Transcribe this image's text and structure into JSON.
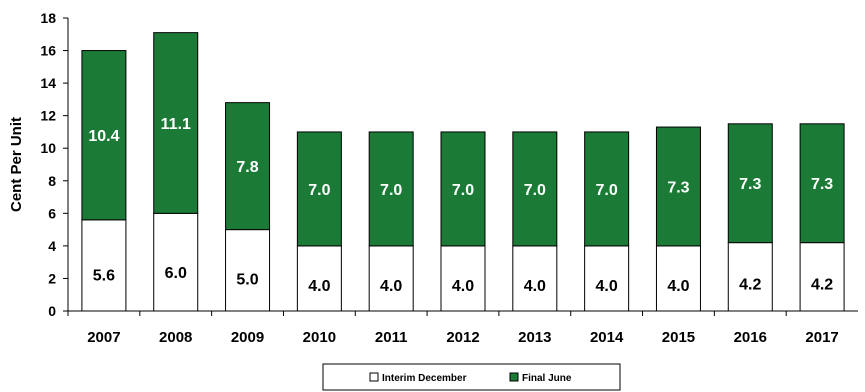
{
  "chart_data": {
    "type": "bar",
    "stacked": true,
    "title": "",
    "xlabel": "",
    "ylabel": "Cent Per Unit",
    "ylim": [
      0,
      18
    ],
    "yticks": [
      "0",
      "2",
      "4",
      "6",
      "8",
      "10",
      "12",
      "14",
      "16",
      "18"
    ],
    "grid": false,
    "legend_position": "bottom",
    "categories": [
      "2007",
      "2008",
      "2009",
      "2010",
      "2011",
      "2012",
      "2013",
      "2014",
      "2015",
      "2016",
      "2017"
    ],
    "series": [
      {
        "name": "Interim December",
        "color": "#ffffff",
        "values": [
          5.6,
          6.0,
          5.0,
          4.0,
          4.0,
          4.0,
          4.0,
          4.0,
          4.0,
          4.2,
          4.2
        ],
        "labels": [
          "5.6",
          "6.0",
          "5.0",
          "4.0",
          "4.0",
          "4.0",
          "4.0",
          "4.0",
          "4.0",
          "4.2",
          "4.2"
        ]
      },
      {
        "name": "Final June",
        "color": "#1a7a36",
        "values": [
          10.4,
          11.1,
          7.8,
          7.0,
          7.0,
          7.0,
          7.0,
          7.0,
          7.3,
          7.3,
          7.3
        ],
        "labels": [
          "10.4",
          "11.1",
          "7.8",
          "7.0",
          "7.0",
          "7.0",
          "7.0",
          "7.0",
          "7.3",
          "7.3",
          "7.3"
        ]
      }
    ]
  }
}
